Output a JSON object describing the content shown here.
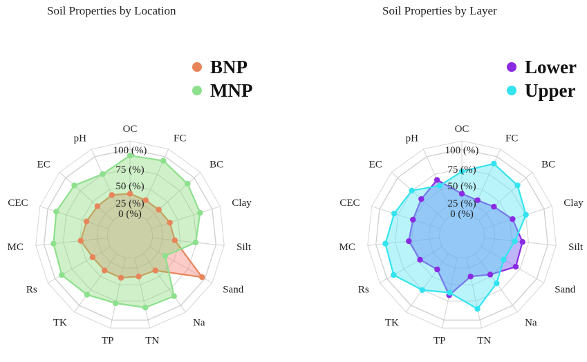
{
  "chart_data": [
    {
      "type": "radar",
      "title": "Soil Properties by Location",
      "axes": [
        "OC",
        "FC",
        "BC",
        "Clay",
        "Silt",
        "Sand",
        "Na",
        "TN",
        "TP",
        "TK",
        "Rs",
        "MC",
        "CEC",
        "EC",
        "pH"
      ],
      "ring_labels": [
        "0 (%)",
        "25 (%)",
        "50 (%)",
        "75 (%)",
        "100 (%)"
      ],
      "range": [
        0,
        100
      ],
      "legend_position": "top-right",
      "series": [
        {
          "name": "BNP",
          "color": "#E8845A",
          "fill": "rgba(245,120,110,0.38)",
          "values": [
            30,
            25,
            25,
            30,
            35,
            95,
            32,
            30,
            32,
            32,
            32,
            42,
            36,
            33,
            34
          ]
        },
        {
          "name": "MNP",
          "color": "#8DE08D",
          "fill": "rgba(130,215,110,0.38)",
          "values": [
            90,
            93,
            86,
            80,
            68,
            28,
            82,
            80,
            73,
            79,
            88,
            85,
            86,
            82,
            70
          ]
        }
      ]
    },
    {
      "type": "radar",
      "title": "Soil Properties by Layer",
      "axes": [
        "OC",
        "FC",
        "BC",
        "Clay",
        "Silt",
        "Sand",
        "Na",
        "TN",
        "TP",
        "TK",
        "Rs",
        "MC",
        "CEC",
        "EC",
        "pH"
      ],
      "ring_labels": [
        "0 (%)",
        "25 (%)",
        "50 (%)",
        "75 (%)",
        "100 (%)"
      ],
      "range": [
        0,
        100
      ],
      "legend_position": "top-right",
      "series": [
        {
          "name": "Lower",
          "color": "#8A2BE2",
          "fill": "rgba(110,90,240,0.45)",
          "values": [
            30,
            25,
            32,
            48,
            60,
            62,
            40,
            30,
            60,
            30,
            40,
            48,
            45,
            50,
            60
          ]
        },
        {
          "name": "Upper",
          "color": "#33E4F0",
          "fill": "rgba(90,228,245,0.42)",
          "values": [
            65,
            88,
            82,
            70,
            48,
            40,
            57,
            82,
            56,
            70,
            88,
            85,
            76,
            70,
            50
          ]
        }
      ]
    }
  ]
}
